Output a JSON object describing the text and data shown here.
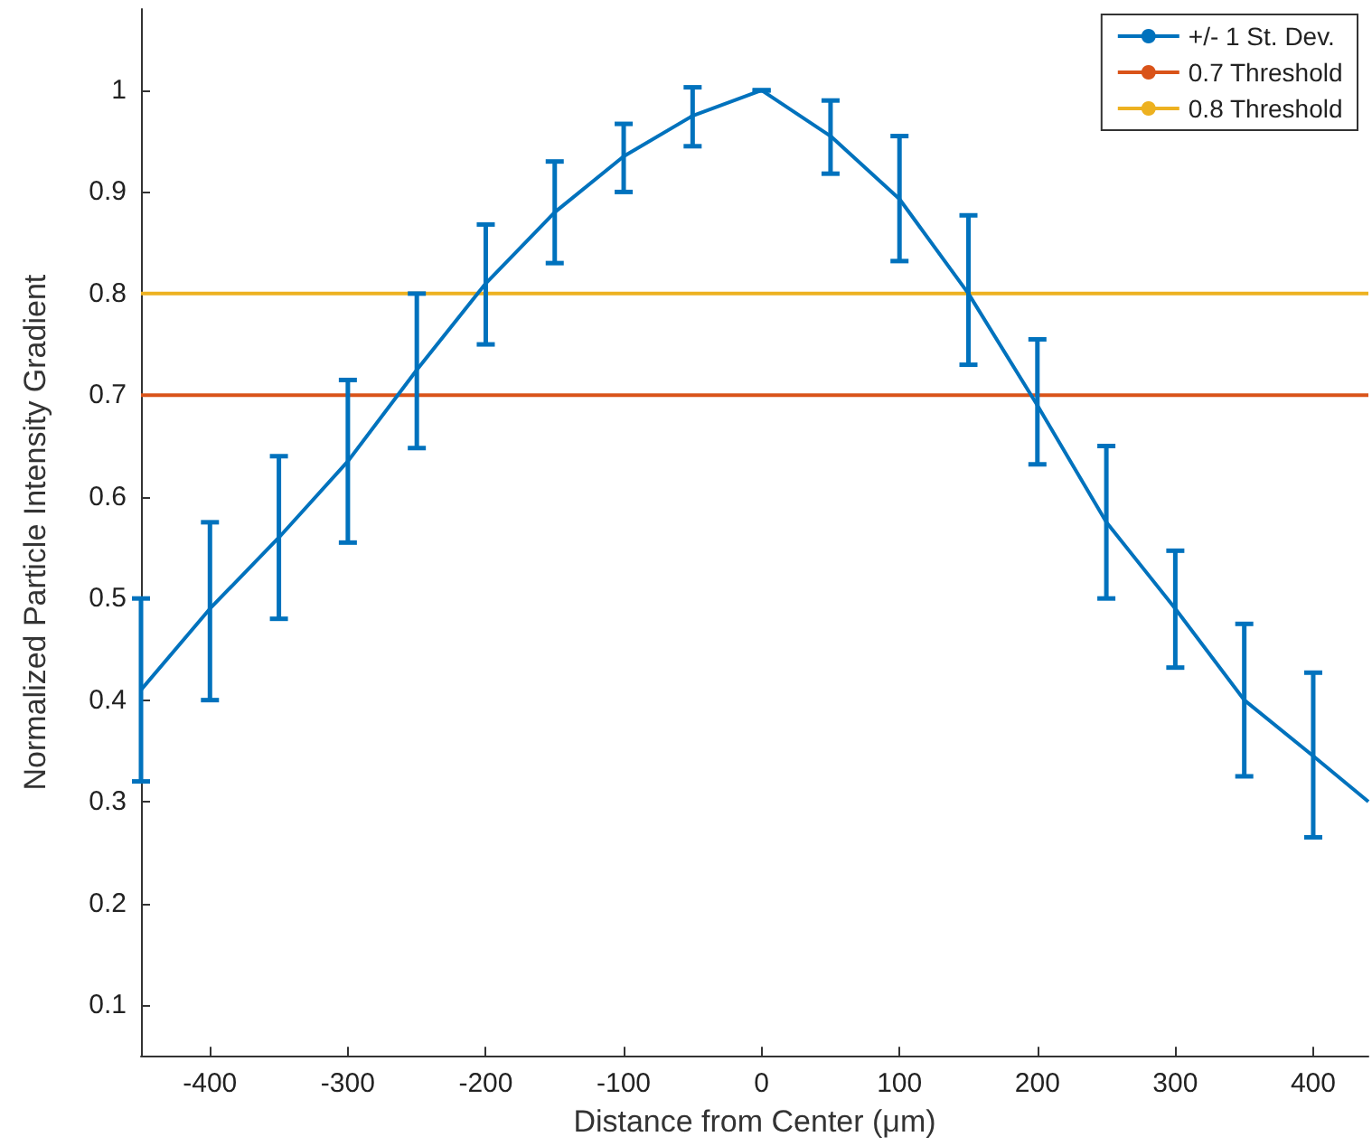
{
  "chart_data": {
    "type": "line",
    "xlabel": "Distance from Center (μm)",
    "ylabel": "Normalized Particle Intensity Gradient",
    "x": [
      -450,
      -400,
      -350,
      -300,
      -250,
      -200,
      -150,
      -100,
      -50,
      0,
      50,
      100,
      150,
      200,
      250,
      300,
      350,
      400,
      440
    ],
    "series": [
      {
        "name": "+/- 1 St. Dev.",
        "color": "#0072bd",
        "values": [
          0.41,
          0.49,
          0.56,
          0.635,
          0.725,
          0.81,
          0.88,
          0.935,
          0.975,
          1.0,
          0.955,
          0.893,
          0.8,
          0.69,
          0.575,
          0.49,
          0.4,
          0.345,
          0.3
        ],
        "errors": [
          [
            0.32,
            0.5
          ],
          [
            0.4,
            0.575
          ],
          [
            0.48,
            0.64
          ],
          [
            0.555,
            0.715
          ],
          [
            0.648,
            0.8
          ],
          [
            0.75,
            0.868
          ],
          [
            0.83,
            0.93
          ],
          [
            0.9,
            0.967
          ],
          [
            0.945,
            1.003
          ],
          [
            1.0,
            1.0
          ],
          [
            0.918,
            0.99
          ],
          [
            0.832,
            0.955
          ],
          [
            0.73,
            0.877
          ],
          [
            0.632,
            0.755
          ],
          [
            0.5,
            0.65
          ],
          [
            0.432,
            0.547
          ],
          [
            0.325,
            0.475
          ],
          [
            0.265,
            0.427
          ],
          null
        ]
      }
    ],
    "ref_lines": [
      {
        "axis": "y",
        "value": 0.7,
        "label": "0.7 Threshold",
        "color": "#d95319"
      },
      {
        "axis": "y",
        "value": 0.8,
        "label": "0.8 Threshold",
        "color": "#edb120"
      }
    ],
    "xlim": [
      -450,
      440
    ],
    "xticks": [
      -400,
      -300,
      -200,
      -100,
      0,
      100,
      200,
      300,
      400
    ],
    "ylim": [
      0.05,
      1.08
    ],
    "yticks": [
      0.1,
      0.2,
      0.3,
      0.4,
      0.5,
      0.6,
      0.7,
      0.8,
      0.9,
      1
    ],
    "grid": false,
    "legend": "top right",
    "marker": "none",
    "line_style": "solid"
  }
}
